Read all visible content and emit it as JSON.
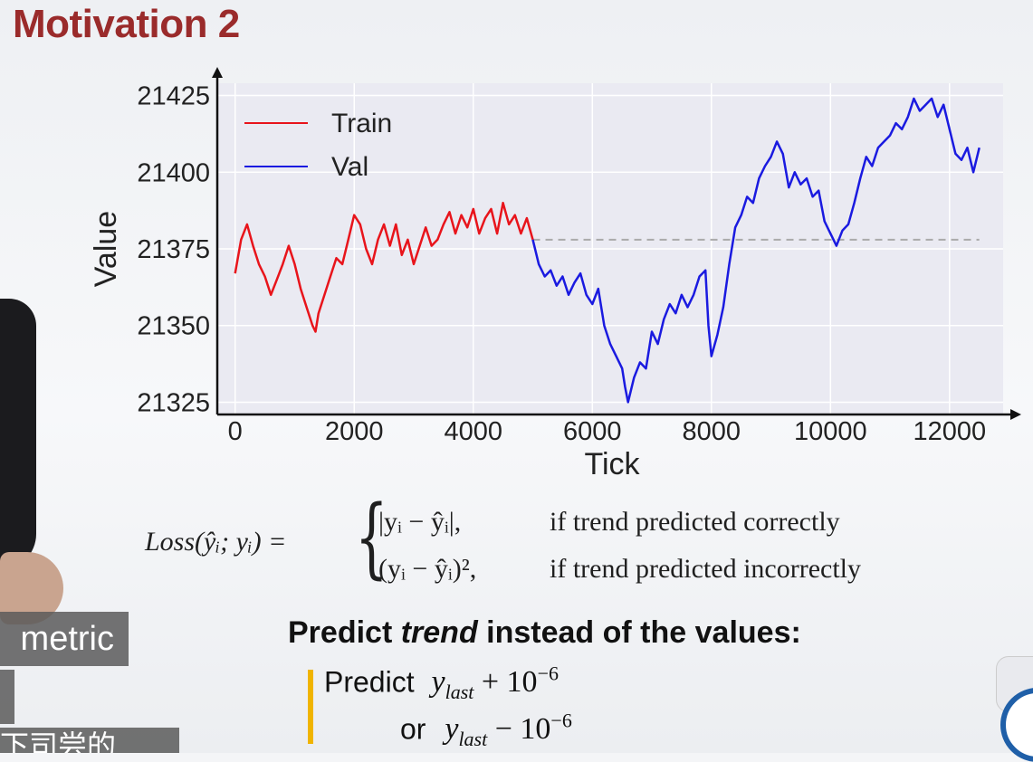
{
  "slide": {
    "title": "Motivation 2",
    "heading_pre": "Predict ",
    "heading_em": "trend",
    "heading_post": " instead of the values:",
    "predict_word": "Predict",
    "or_word": "or",
    "y_last_base": "y",
    "y_last_sub": "last",
    "plus_expr": " + 10",
    "minus_expr": " − 10",
    "exponent": "−6"
  },
  "formula": {
    "lhs": "Loss(ŷᵢ; yᵢ) =",
    "case1": "|yᵢ − ŷᵢ|,",
    "case2": "(yᵢ − ŷᵢ)²,",
    "cond1": "if trend predicted correctly",
    "cond2": "if trend predicted incorrectly"
  },
  "overlay": {
    "box1": "metric",
    "box3": "下司尝的"
  },
  "colors": {
    "title": "#9a2b2b",
    "train": "#e8141b",
    "val": "#1a1ae0",
    "plot_bg": "#eaeaf2",
    "accent_bar": "#f0b400"
  },
  "chart_data": {
    "type": "line",
    "xlabel": "Tick",
    "ylabel": "Value",
    "xlim": [
      -300,
      12900
    ],
    "ylim": [
      21321,
      21429
    ],
    "xticks": [
      0,
      2000,
      4000,
      6000,
      8000,
      10000,
      12000
    ],
    "yticks": [
      21325,
      21350,
      21375,
      21400,
      21425
    ],
    "grid": true,
    "legend_position": "top-left",
    "reference_line": {
      "y": 21378,
      "x_start": 5000,
      "x_end": 12500,
      "style": "dashed"
    },
    "series": [
      {
        "name": "Train",
        "color": "#e8141b",
        "x": [
          0,
          100,
          200,
          300,
          400,
          500,
          600,
          700,
          800,
          900,
          1000,
          1100,
          1200,
          1300,
          1350,
          1400,
          1500,
          1600,
          1700,
          1800,
          1900,
          2000,
          2100,
          2200,
          2300,
          2400,
          2500,
          2600,
          2700,
          2800,
          2900,
          3000,
          3100,
          3200,
          3300,
          3400,
          3500,
          3600,
          3700,
          3800,
          3900,
          4000,
          4100,
          4200,
          4300,
          4400,
          4500,
          4600,
          4700,
          4800,
          4900,
          5000
        ],
        "y": [
          21367,
          21378,
          21383,
          21376,
          21370,
          21366,
          21360,
          21365,
          21370,
          21376,
          21370,
          21362,
          21356,
          21350,
          21348,
          21354,
          21360,
          21366,
          21372,
          21370,
          21378,
          21386,
          21383,
          21375,
          21370,
          21378,
          21383,
          21376,
          21383,
          21373,
          21378,
          21370,
          21376,
          21382,
          21376,
          21378,
          21383,
          21387,
          21380,
          21386,
          21382,
          21388,
          21380,
          21385,
          21388,
          21380,
          21390,
          21383,
          21386,
          21380,
          21385,
          21378
        ]
      },
      {
        "name": "Val",
        "color": "#1a1ae0",
        "x": [
          5000,
          5100,
          5200,
          5300,
          5400,
          5500,
          5600,
          5700,
          5800,
          5900,
          6000,
          6100,
          6200,
          6300,
          6400,
          6500,
          6550,
          6600,
          6700,
          6800,
          6900,
          7000,
          7100,
          7200,
          7300,
          7400,
          7500,
          7600,
          7700,
          7800,
          7900,
          7950,
          8000,
          8100,
          8200,
          8300,
          8400,
          8500,
          8600,
          8700,
          8800,
          8900,
          9000,
          9100,
          9200,
          9300,
          9400,
          9500,
          9600,
          9700,
          9800,
          9900,
          10000,
          10100,
          10200,
          10300,
          10400,
          10500,
          10600,
          10700,
          10800,
          10900,
          11000,
          11100,
          11200,
          11300,
          11400,
          11500,
          11600,
          11700,
          11800,
          11900,
          12000,
          12100,
          12200,
          12300,
          12400,
          12500
        ],
        "y": [
          21378,
          21370,
          21366,
          21368,
          21363,
          21366,
          21360,
          21364,
          21367,
          21360,
          21357,
          21362,
          21350,
          21344,
          21340,
          21336,
          21330,
          21325,
          21333,
          21338,
          21336,
          21348,
          21344,
          21352,
          21357,
          21354,
          21360,
          21356,
          21360,
          21366,
          21368,
          21350,
          21340,
          21347,
          21356,
          21370,
          21382,
          21386,
          21392,
          21390,
          21398,
          21402,
          21405,
          21410,
          21406,
          21395,
          21400,
          21396,
          21398,
          21392,
          21394,
          21384,
          21380,
          21376,
          21381,
          21383,
          21390,
          21398,
          21405,
          21402,
          21408,
          21410,
          21412,
          21416,
          21414,
          21418,
          21424,
          21420,
          21422,
          21424,
          21418,
          21422,
          21414,
          21406,
          21404,
          21408,
          21400,
          21408
        ]
      }
    ]
  }
}
